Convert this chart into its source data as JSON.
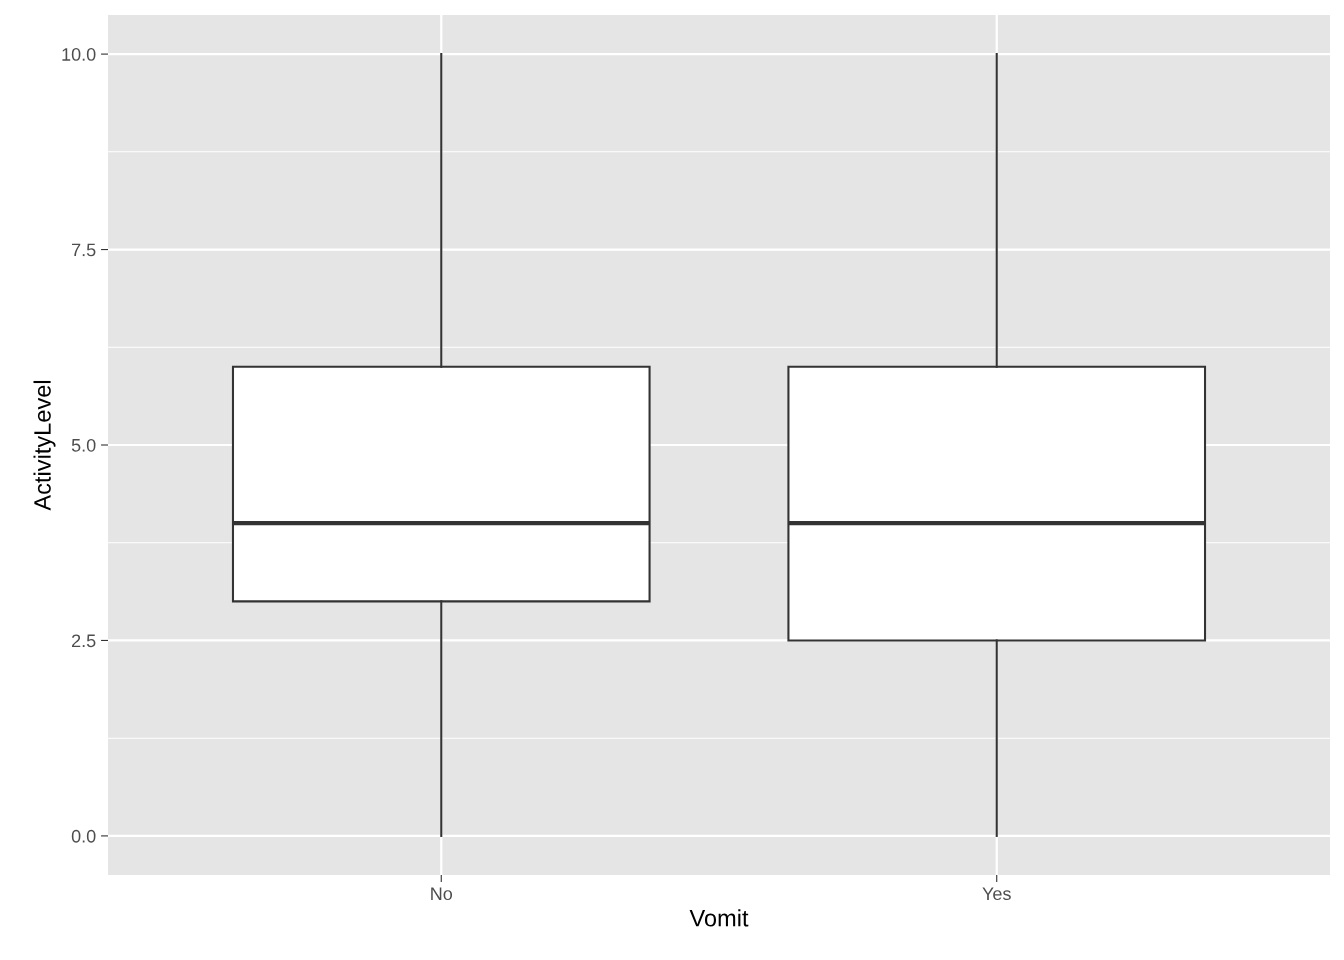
{
  "chart_data": {
    "type": "box",
    "xlabel": "Vomit",
    "ylabel": "ActivityLevel",
    "categories": [
      "No",
      "Yes"
    ],
    "boxes": [
      {
        "low": 0,
        "q1": 3,
        "median": 4,
        "q3": 6,
        "high": 10
      },
      {
        "low": 0,
        "q1": 2.5,
        "median": 4,
        "q3": 6,
        "high": 10
      }
    ],
    "ylim": [
      -0.5,
      10.5
    ],
    "yticks": [
      {
        "value": 0,
        "label": "0.0"
      },
      {
        "value": 2.5,
        "label": "2.5"
      },
      {
        "value": 5,
        "label": "5.0"
      },
      {
        "value": 7.5,
        "label": "7.5"
      },
      {
        "value": 10,
        "label": "10.0"
      }
    ],
    "grid": true,
    "legend": false
  }
}
